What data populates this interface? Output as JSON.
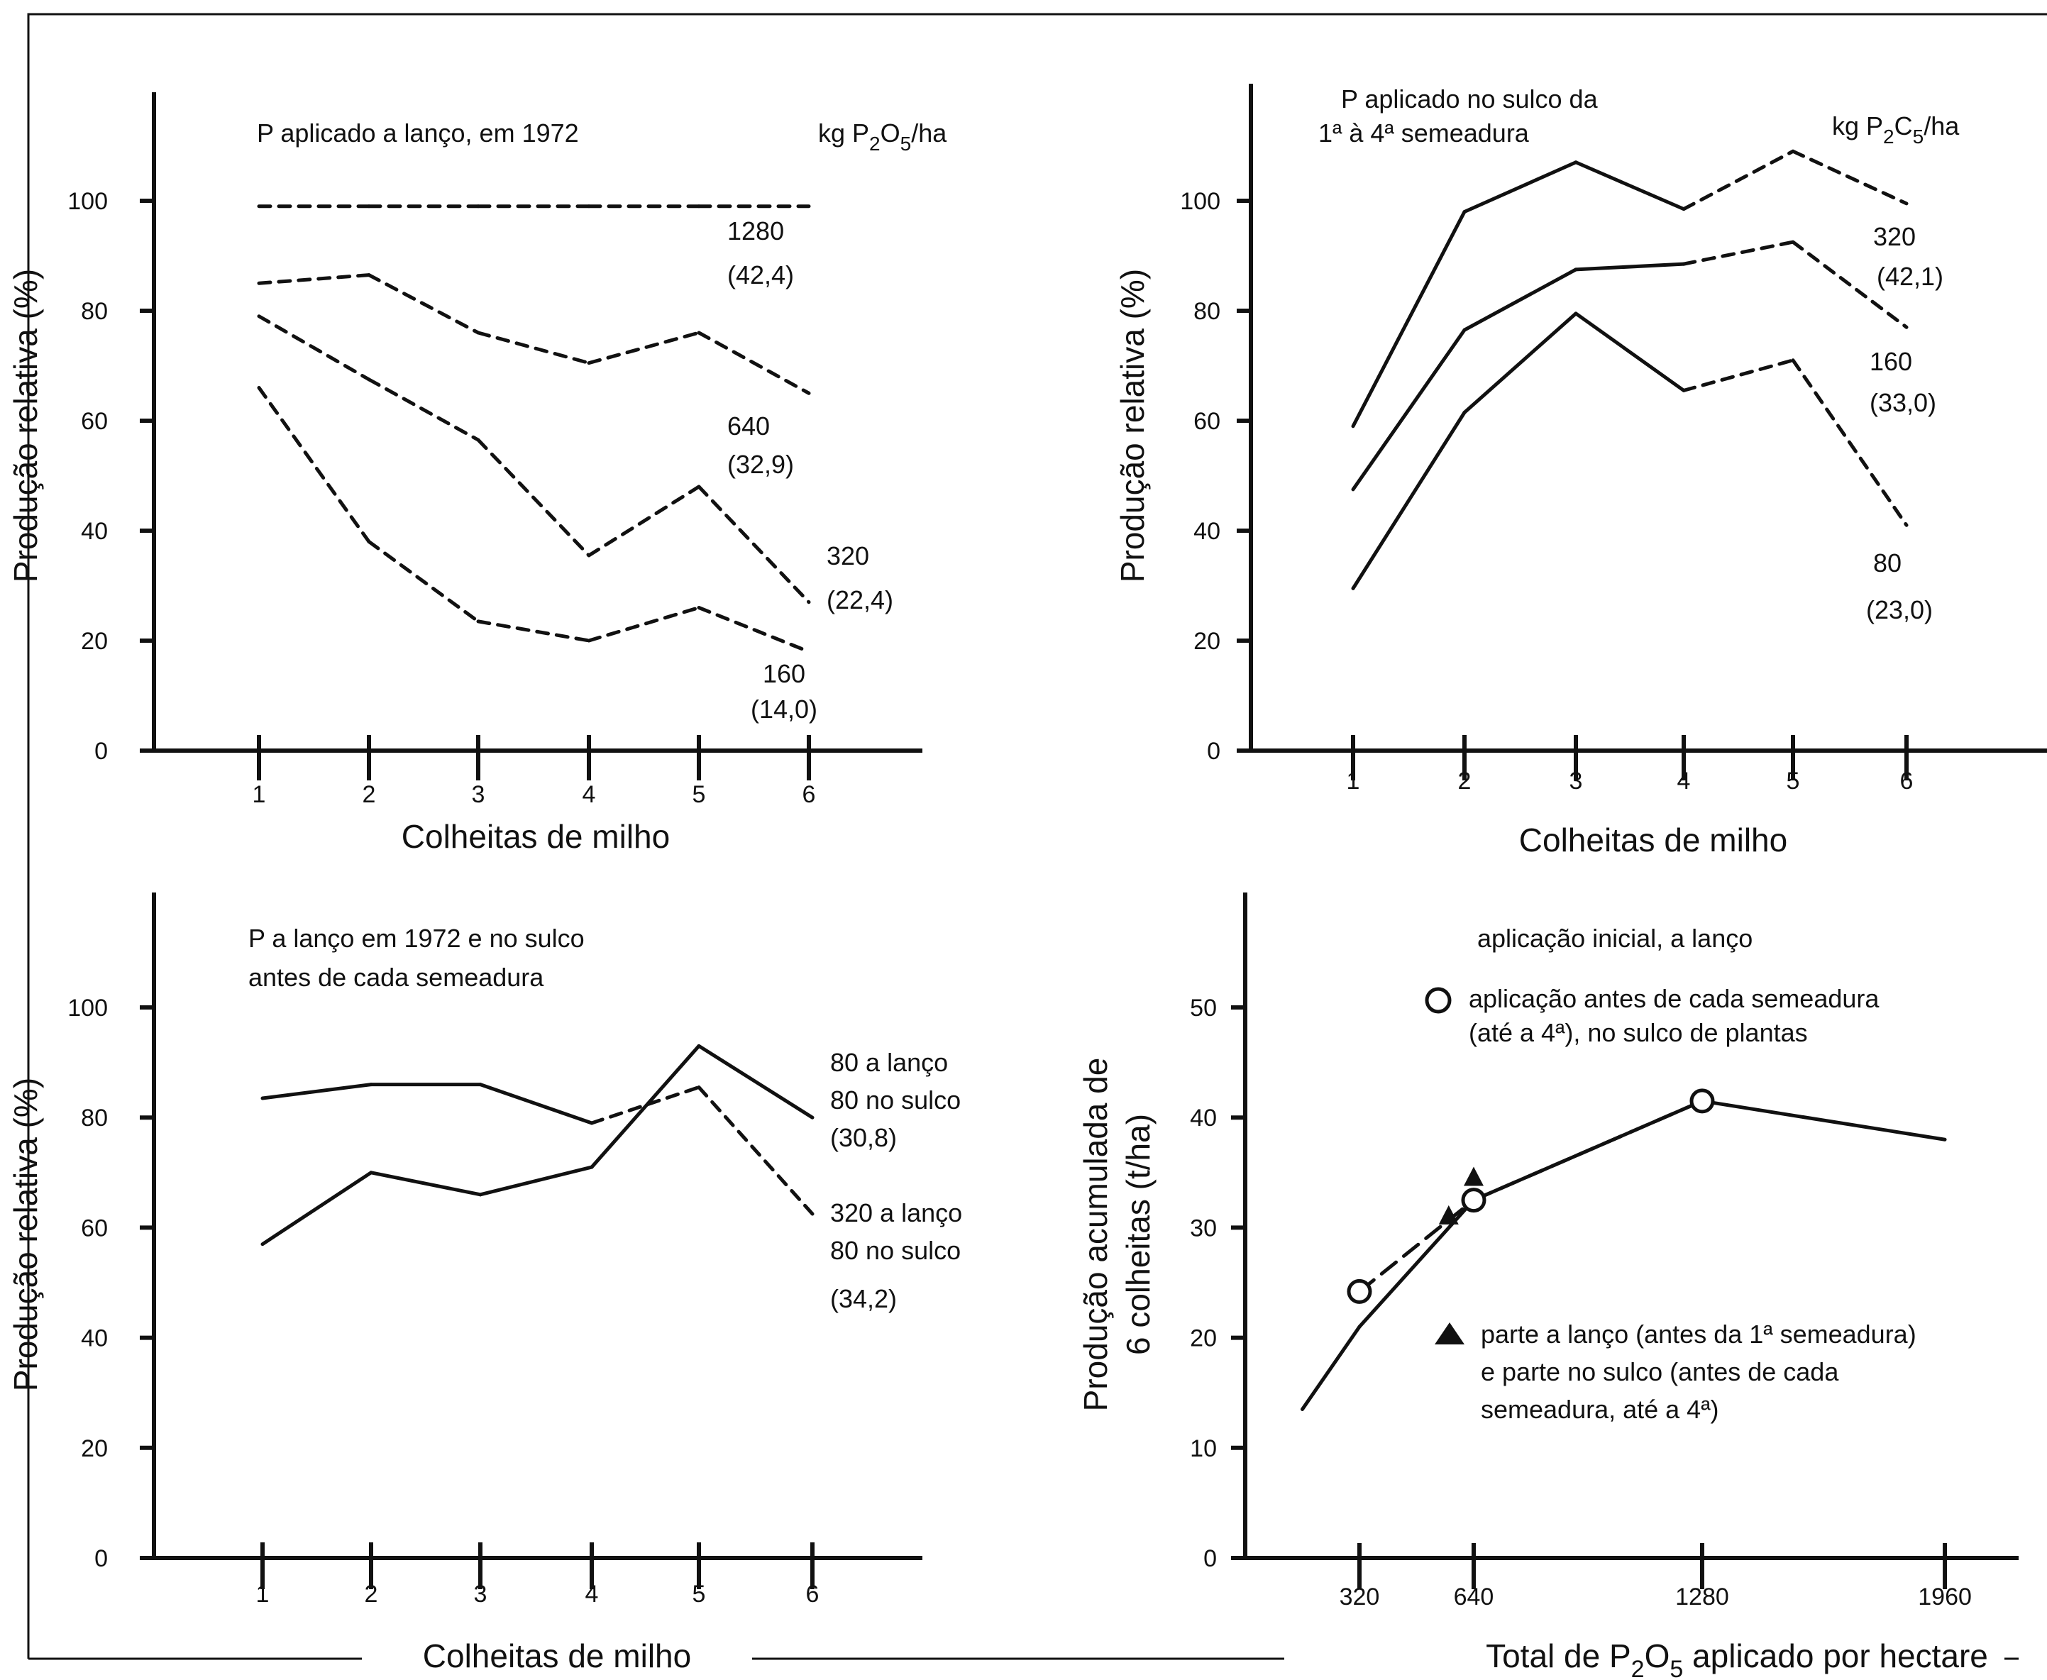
{
  "chart_data": [
    {
      "type": "line",
      "id": "a",
      "annotation": "P aplicado a lanço, em 1972",
      "units": "kg P2O5/ha",
      "xlabel": "Colheitas de milho",
      "ylabel": "Produção relativa (%)",
      "x": [
        1,
        2,
        3,
        4,
        5,
        6
      ],
      "xticks": [
        "1",
        "2",
        "3",
        "4",
        "5",
        "6"
      ],
      "yticks": [
        "0",
        "20",
        "40",
        "60",
        "80",
        "100"
      ],
      "ylim": [
        0,
        100
      ],
      "series": [
        {
          "name": "1280",
          "note": "(42,4)",
          "values": [
            99,
            99,
            99,
            99,
            99,
            99
          ],
          "styles": [
            "dashed",
            "dashed",
            "dashed",
            "dashed",
            "dashed"
          ]
        },
        {
          "name": "640",
          "note": "(32,9)",
          "values": [
            85,
            86.5,
            76,
            70.5,
            76,
            65
          ],
          "styles": [
            "dashed",
            "dashed",
            "dashed",
            "dashed",
            "dashed"
          ]
        },
        {
          "name": "320",
          "note": "(22,4)",
          "values": [
            79,
            67.5,
            56.5,
            35.5,
            48,
            27
          ],
          "styles": [
            "dashed",
            "dashed",
            "dashed",
            "dashed",
            "dashed"
          ]
        },
        {
          "name": "160",
          "note": "(14,0)",
          "values": [
            66,
            38,
            23.5,
            20,
            26,
            18
          ],
          "styles": [
            "dashed",
            "dashed",
            "dashed",
            "dashed",
            "dashed"
          ]
        }
      ]
    },
    {
      "type": "line",
      "id": "b",
      "annotation": [
        "P aplicado no sulco da",
        "1ª à 4ª semeadura"
      ],
      "units": "kg P2C5/ha",
      "xlabel": "Colheitas de milho",
      "ylabel": "Produção relativa (%)",
      "x": [
        1,
        2,
        3,
        4,
        5,
        6
      ],
      "xticks": [
        "1",
        "2",
        "3",
        "4",
        "5",
        "6"
      ],
      "yticks": [
        "0",
        "20",
        "40",
        "60",
        "80",
        "100"
      ],
      "ylim": [
        0,
        100
      ],
      "series": [
        {
          "name": "320",
          "note": "(42,1)",
          "values": [
            59,
            98,
            107,
            98.5,
            109,
            99.5
          ],
          "styles": [
            "solid",
            "solid",
            "solid",
            "dashed",
            "dashed"
          ]
        },
        {
          "name": "160",
          "note": "(33,0)",
          "values": [
            47.5,
            76.5,
            87.5,
            88.5,
            92.5,
            77
          ],
          "styles": [
            "solid",
            "solid",
            "solid",
            "dashed",
            "dashed"
          ]
        },
        {
          "name": "80",
          "note": "(23,0)",
          "values": [
            29.5,
            61.5,
            79.5,
            65.5,
            71,
            41
          ],
          "styles": [
            "solid",
            "solid",
            "solid",
            "dashed",
            "dashed"
          ]
        }
      ]
    },
    {
      "type": "line",
      "id": "c",
      "annotation": [
        "P a lanço em 1972 e no sulco",
        "antes de cada semeadura"
      ],
      "xlabel": "Colheitas de milho",
      "ylabel": "Produção relativa (%)",
      "x": [
        1,
        2,
        3,
        4,
        5,
        6
      ],
      "xticks": [
        "1",
        "2",
        "3",
        "4",
        "5",
        "6"
      ],
      "yticks": [
        "0",
        "20",
        "40",
        "60",
        "80",
        "100"
      ],
      "ylim": [
        0,
        100
      ],
      "series": [
        {
          "name": "80 a lanço / 80 no sulco",
          "label_lines": [
            "80 a lanço",
            "80 no sulco",
            "(30,8)"
          ],
          "values": [
            57,
            70,
            66,
            71,
            93,
            80
          ],
          "styles": [
            "solid",
            "solid",
            "solid",
            "solid",
            "solid"
          ]
        },
        {
          "name": "320 a lanço / 80 no sulco",
          "label_lines": [
            "320 a lanço",
            "80 no sulco",
            "(34,2)"
          ],
          "values": [
            83.5,
            86,
            86,
            79,
            85.5,
            62.5
          ],
          "styles": [
            "solid",
            "solid",
            "solid",
            "dashed",
            "dashed"
          ]
        }
      ]
    },
    {
      "type": "line",
      "id": "d",
      "xlabel": "Total de P2O5 aplicado por hectare",
      "ylabel_lines": [
        "Produção acumulada de",
        "6 colheitas (t/ha)"
      ],
      "xticks": [
        "320",
        "640",
        "1280",
        "1960"
      ],
      "xtick_values": [
        320,
        640,
        1280,
        1960
      ],
      "xlim": [
        0,
        2160
      ],
      "yticks": [
        "0",
        "10",
        "20",
        "30",
        "40",
        "50"
      ],
      "ylim": [
        0,
        55
      ],
      "legend": {
        "solid_label": "aplicação inicial, a lanço",
        "circle_lines": [
          "aplicação antes de cada semeadura",
          "(até a 4ª), no sulco de plantas"
        ],
        "triangle_lines": [
          "parte a lanço (antes da 1ª semeadura)",
          "e parte no sulco (antes de cada",
          "semeadura, até a 4ª)"
        ]
      },
      "series": [
        {
          "name": "aplicação inicial, a lanço",
          "style": "solid",
          "points": [
            [
              160,
              13.5
            ],
            [
              320,
              21
            ],
            [
              640,
              32.5
            ],
            [
              1280,
              41.5
            ],
            [
              1960,
              38
            ]
          ]
        },
        {
          "name": "aplicação antes de cada semeadura",
          "style": "dashed",
          "marker": "circle",
          "points": [
            [
              320,
              24.2
            ],
            [
              640,
              32.5
            ],
            [
              1280,
              41.5
            ]
          ]
        },
        {
          "name": "parte a lanço e parte no sulco",
          "style": "none",
          "marker": "triangle",
          "points": [
            [
              570,
              31
            ],
            [
              640,
              34.5
            ]
          ]
        }
      ]
    }
  ]
}
